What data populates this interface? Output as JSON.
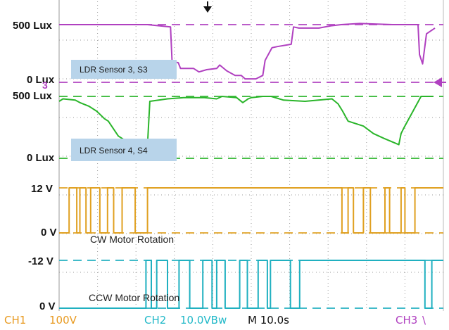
{
  "chart_data": {
    "type": "line",
    "title": "",
    "grid": true,
    "levels": {
      "s3_high": "500 Lux",
      "s3_low": "0 Lux",
      "s4_high": "500 Lux",
      "s4_low": "0 Lux",
      "cw_high": "12 V",
      "cw_low": "0 V",
      "ccw_high": "-12 V",
      "ccw_low": "0 V"
    },
    "sensor_labels": [
      "LDR Sensor 3, S3",
      "LDR Sensor 4, S4"
    ],
    "motor_labels": [
      "CW Motor Rotation",
      "CCW Motor Rotation"
    ],
    "channel_marker": "3",
    "series": [
      {
        "name": "LDR Sensor 3, S3",
        "color": "#b040c0",
        "x": [
          0,
          11.5,
          14.5,
          14.7,
          15.5,
          15.8,
          17.5,
          18.2,
          19.2,
          20.5,
          20.9,
          21.8,
          22.9,
          23.7,
          24.2,
          25.6,
          26.5,
          26.8,
          27.7,
          28.4,
          30.2,
          30.5,
          31.2,
          33.8,
          35.4,
          36.7,
          39.1,
          43.4,
          46.7,
          46.9,
          47.3,
          47.8,
          48.9
        ],
        "y": [
          500,
          500,
          480,
          180,
          170,
          120,
          120,
          90,
          110,
          120,
          150,
          100,
          60,
          60,
          30,
          30,
          60,
          190,
          300,
          310,
          330,
          480,
          470,
          470,
          490,
          500,
          510,
          500,
          500,
          240,
          160,
          420,
          470
        ]
      },
      {
        "name": "LDR Sensor 4, S4",
        "color": "#2ab52a",
        "x": [
          0,
          0.5,
          2.1,
          2.7,
          3.9,
          4.9,
          5.9,
          6.4,
          7.7,
          9.2,
          9.7,
          11.5,
          11.8,
          14.1,
          16.2,
          18.9,
          20.5,
          21.2,
          23.1,
          23.9,
          24.6,
          25.0,
          26.5,
          27.6,
          29.2,
          32.0,
          35.5,
          36.3,
          36.9,
          37.6,
          39.6,
          40.9,
          42.3,
          44.2,
          44.5,
          44.9,
          47.1,
          48.7
        ],
        "y": [
          460,
          480,
          470,
          450,
          420,
          380,
          320,
          300,
          180,
          120,
          100,
          110,
          460,
          480,
          490,
          490,
          480,
          500,
          490,
          450,
          480,
          490,
          500,
          500,
          470,
          460,
          480,
          440,
          380,
          300,
          260,
          200,
          160,
          110,
          200,
          250,
          500,
          500
        ]
      },
      {
        "name": "CW Motor Rotation",
        "color": "#e0a020",
        "x": [
          0,
          1.3,
          1.3,
          2.3,
          2.3,
          2.7,
          2.7,
          3.5,
          3.5,
          4.1,
          4.1,
          5.3,
          5.3,
          6.3,
          6.3,
          7.1,
          7.1,
          8.2,
          8.2,
          9.9,
          9.9,
          11.5,
          11.5,
          36.8,
          36.8,
          37.6,
          37.6,
          38.3,
          38.3,
          39.6,
          39.6,
          40.5,
          40.5,
          42.4,
          42.4,
          43.0,
          43.0,
          44.5,
          44.5,
          45.0,
          45.0,
          46.3,
          46.3,
          50
        ],
        "y": [
          0,
          0,
          12,
          12,
          0,
          0,
          12,
          12,
          0,
          0,
          12,
          12,
          0,
          0,
          12,
          12,
          0,
          0,
          12,
          12,
          0,
          0,
          12,
          12,
          0,
          0,
          12,
          12,
          0,
          0,
          12,
          12,
          0,
          0,
          12,
          12,
          0,
          0,
          12,
          12,
          0,
          0,
          12,
          12
        ]
      },
      {
        "name": "CCW Motor Rotation",
        "color": "#20b0c0",
        "x": [
          0,
          11.3,
          11.3,
          12.0,
          12.0,
          12.7,
          12.7,
          14.1,
          14.1,
          15.6,
          15.6,
          17.0,
          17.0,
          18.7,
          18.7,
          19.9,
          19.9,
          20.5,
          20.5,
          21.6,
          21.6,
          23.5,
          23.5,
          24.5,
          24.5,
          25.9,
          25.9,
          27.1,
          27.1,
          27.5,
          27.5,
          30.1,
          30.1,
          31.3,
          31.3,
          47.6,
          47.6,
          48.5,
          48.5,
          50
        ],
        "y": [
          0,
          0,
          -12,
          -12,
          0,
          0,
          -12,
          -12,
          0,
          0,
          -12,
          -12,
          0,
          0,
          -12,
          -12,
          0,
          0,
          -12,
          -12,
          0,
          0,
          -12,
          -12,
          0,
          0,
          -12,
          -12,
          0,
          0,
          -12,
          -12,
          0,
          0,
          -12,
          -12,
          0,
          0,
          -12,
          -12
        ]
      }
    ],
    "status_bar": {
      "ch1": "CH1",
      "ch1_scale": "100V",
      "ch2": "CH2",
      "ch2_scale": "10.0VBw",
      "timebase": "M 10.0s",
      "ch3": "CH3",
      "trigger_symbol": "\\"
    },
    "colors": {
      "s3": "#b040c0",
      "s4": "#2ab52a",
      "cw": "#e0a020",
      "ccw": "#20b0c0",
      "grid_dot": "#9a9a9a",
      "label_box": "#b8d4ea",
      "status_orange": "#e89a20",
      "status_cyan": "#20b8c8",
      "status_magenta": "#b040c0"
    }
  }
}
